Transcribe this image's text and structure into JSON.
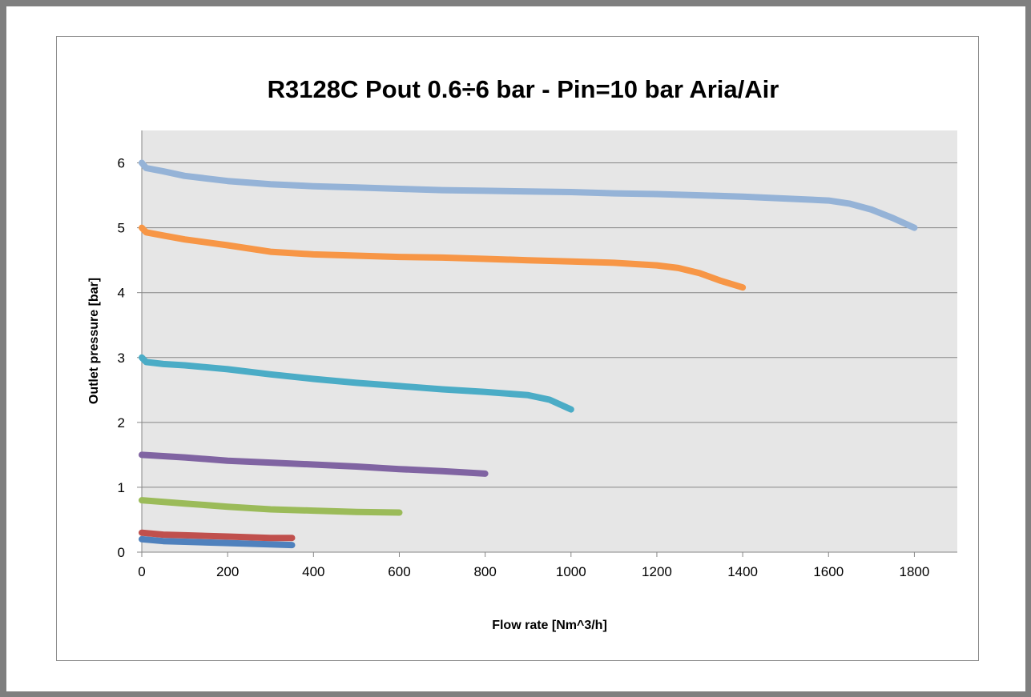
{
  "chart_data": {
    "type": "line",
    "title": "R3128C  Pout 0.6÷6 bar - Pin=10 bar   Aria/Air",
    "xlabel": "Flow rate [Nm^3/h]",
    "ylabel": "Outlet pressure [bar]",
    "xlim": [
      0,
      1900
    ],
    "ylim": [
      0,
      6.5
    ],
    "xticks": [
      0,
      200,
      400,
      600,
      800,
      1000,
      1200,
      1400,
      1600,
      1800
    ],
    "yticks": [
      0,
      1,
      2,
      3,
      4,
      5,
      6
    ],
    "grid": "horizontal",
    "legend": "none",
    "plot_background": "#e6e6e6",
    "series": [
      {
        "color": "#4f81bd",
        "points": [
          [
            0,
            0.2
          ],
          [
            50,
            0.17
          ],
          [
            100,
            0.16
          ],
          [
            200,
            0.14
          ],
          [
            300,
            0.12
          ],
          [
            350,
            0.11
          ]
        ]
      },
      {
        "color": "#c0504d",
        "points": [
          [
            0,
            0.3
          ],
          [
            50,
            0.27
          ],
          [
            100,
            0.26
          ],
          [
            200,
            0.24
          ],
          [
            300,
            0.22
          ],
          [
            350,
            0.22
          ]
        ]
      },
      {
        "color": "#9bbb59",
        "points": [
          [
            0,
            0.8
          ],
          [
            100,
            0.75
          ],
          [
            200,
            0.7
          ],
          [
            300,
            0.66
          ],
          [
            400,
            0.64
          ],
          [
            500,
            0.62
          ],
          [
            600,
            0.61
          ]
        ]
      },
      {
        "color": "#8064a2",
        "points": [
          [
            0,
            1.5
          ],
          [
            100,
            1.46
          ],
          [
            200,
            1.41
          ],
          [
            300,
            1.38
          ],
          [
            400,
            1.35
          ],
          [
            500,
            1.32
          ],
          [
            600,
            1.28
          ],
          [
            700,
            1.25
          ],
          [
            800,
            1.21
          ]
        ]
      },
      {
        "color": "#4bacc6",
        "points": [
          [
            0,
            3.0
          ],
          [
            10,
            2.93
          ],
          [
            50,
            2.9
          ],
          [
            100,
            2.88
          ],
          [
            200,
            2.82
          ],
          [
            300,
            2.74
          ],
          [
            400,
            2.67
          ],
          [
            500,
            2.61
          ],
          [
            600,
            2.56
          ],
          [
            700,
            2.51
          ],
          [
            800,
            2.47
          ],
          [
            900,
            2.42
          ],
          [
            950,
            2.35
          ],
          [
            1000,
            2.2
          ]
        ]
      },
      {
        "color": "#f79646",
        "points": [
          [
            0,
            5.0
          ],
          [
            10,
            4.93
          ],
          [
            50,
            4.88
          ],
          [
            100,
            4.82
          ],
          [
            200,
            4.73
          ],
          [
            300,
            4.63
          ],
          [
            400,
            4.59
          ],
          [
            500,
            4.57
          ],
          [
            600,
            4.55
          ],
          [
            700,
            4.54
          ],
          [
            800,
            4.52
          ],
          [
            900,
            4.5
          ],
          [
            1000,
            4.48
          ],
          [
            1100,
            4.46
          ],
          [
            1200,
            4.42
          ],
          [
            1250,
            4.38
          ],
          [
            1300,
            4.3
          ],
          [
            1350,
            4.18
          ],
          [
            1400,
            4.08
          ]
        ]
      },
      {
        "color": "#95b3d7",
        "points": [
          [
            0,
            6.0
          ],
          [
            10,
            5.92
          ],
          [
            50,
            5.87
          ],
          [
            100,
            5.8
          ],
          [
            200,
            5.72
          ],
          [
            300,
            5.67
          ],
          [
            400,
            5.64
          ],
          [
            500,
            5.62
          ],
          [
            600,
            5.6
          ],
          [
            700,
            5.58
          ],
          [
            800,
            5.57
          ],
          [
            900,
            5.56
          ],
          [
            1000,
            5.55
          ],
          [
            1100,
            5.53
          ],
          [
            1200,
            5.52
          ],
          [
            1300,
            5.5
          ],
          [
            1400,
            5.48
          ],
          [
            1500,
            5.45
          ],
          [
            1600,
            5.42
          ],
          [
            1650,
            5.37
          ],
          [
            1700,
            5.28
          ],
          [
            1750,
            5.15
          ],
          [
            1800,
            5.0
          ]
        ]
      }
    ]
  }
}
